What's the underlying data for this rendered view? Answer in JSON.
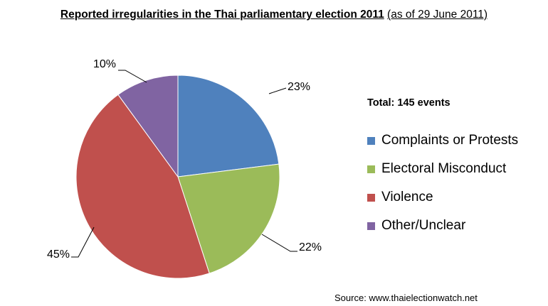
{
  "title": {
    "main": "Reported irregularities in the Thai parliamentary election 2011",
    "sub": "(as of 29 June 2011)"
  },
  "total_label": "Total: 145 events",
  "source": "Source: www.thaielectionwatch.net",
  "chart_data": {
    "type": "pie",
    "title": "Reported irregularities in the Thai parliamentary election 2011 (as of 29 June 2011)",
    "slices": [
      {
        "label": "Complaints or Protests",
        "value": 23,
        "display": "23%",
        "color": "#4f81bd"
      },
      {
        "label": "Electoral Misconduct",
        "value": 22,
        "display": "22%",
        "color": "#9bbb59"
      },
      {
        "label": "Violence",
        "value": 45,
        "display": "45%",
        "color": "#c0504d"
      },
      {
        "label": "Other/Unclear",
        "value": 10,
        "display": "10%",
        "color": "#8064a2"
      }
    ],
    "start": "12 o'clock",
    "direction": "clockwise",
    "legend_position": "right"
  }
}
